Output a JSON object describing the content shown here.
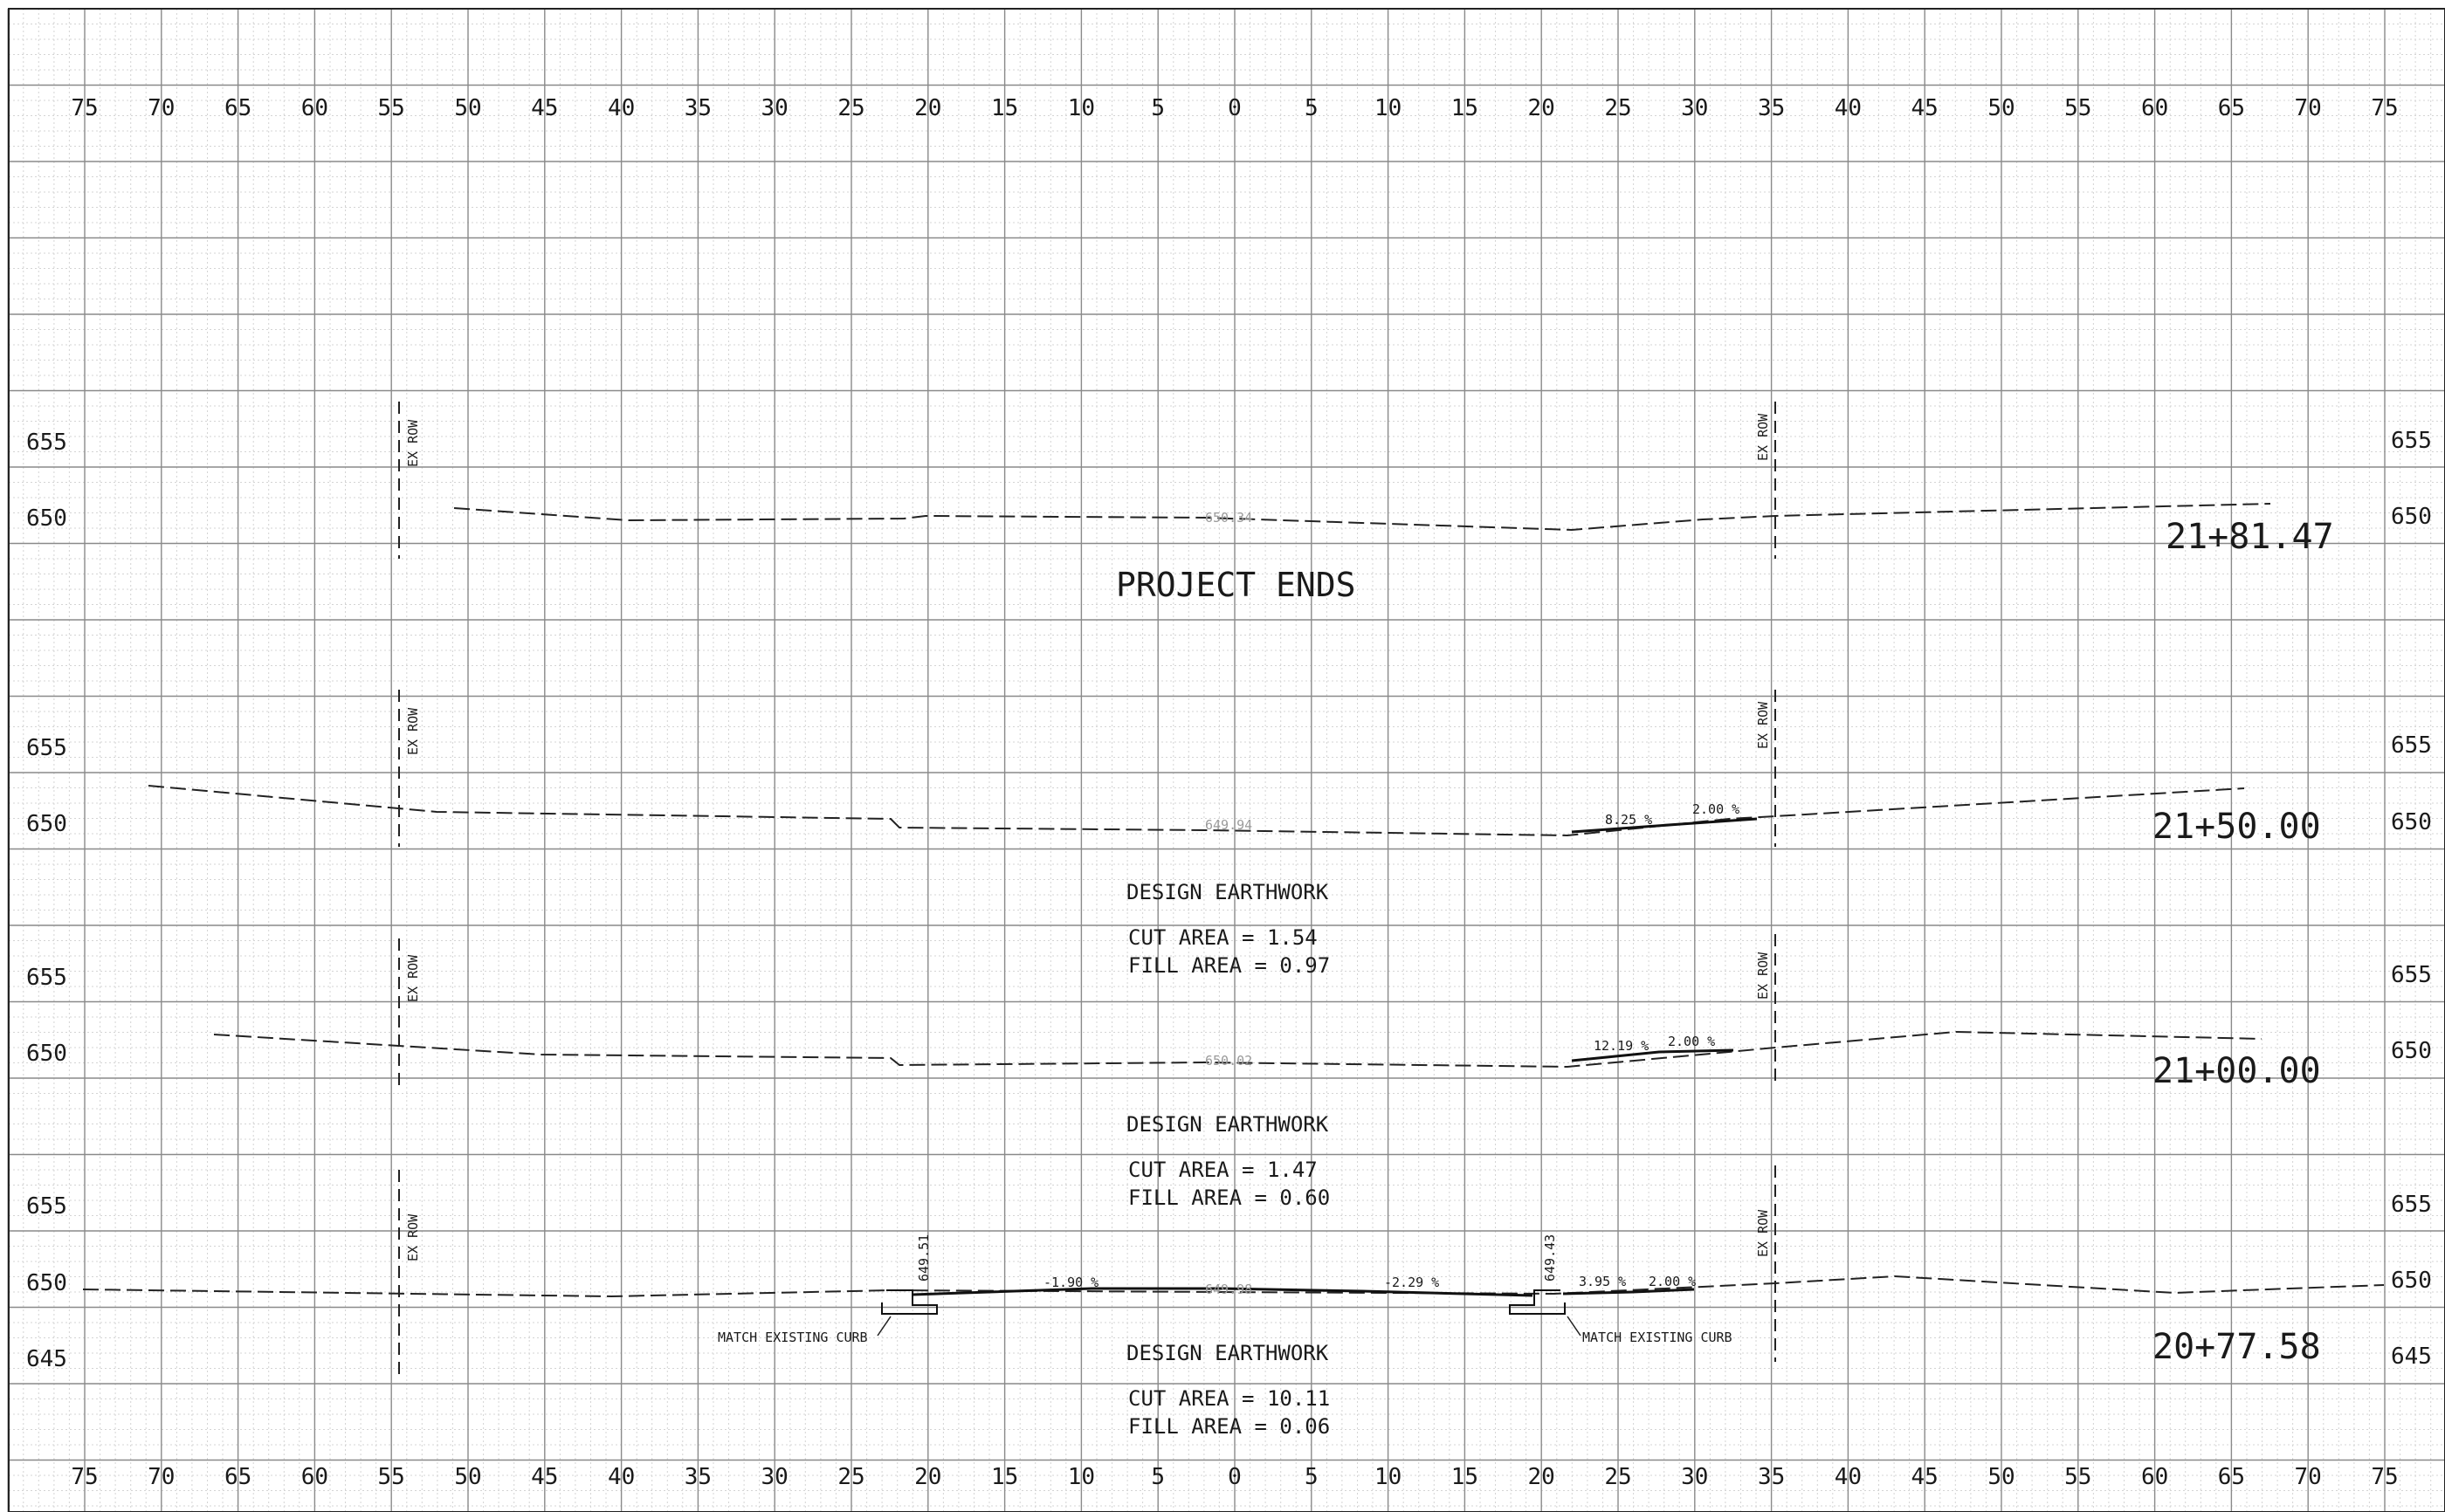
{
  "offset_labels": [
    "75",
    "70",
    "65",
    "60",
    "55",
    "50",
    "45",
    "40",
    "35",
    "30",
    "25",
    "20",
    "15",
    "10",
    "5",
    "0",
    "5",
    "10",
    "15",
    "20",
    "25",
    "30",
    "35",
    "40",
    "45",
    "50",
    "55",
    "60",
    "65",
    "70",
    "75"
  ],
  "sections": [
    {
      "station": "21+81.47",
      "elev_labels": [
        "655",
        "650"
      ],
      "title": "PROJECT ENDS",
      "row_label": "EX ROW",
      "centerline_elev": "650.34"
    },
    {
      "station": "21+50.00",
      "elev_labels": [
        "655",
        "650"
      ],
      "row_label": "EX ROW",
      "centerline_elev": "649.94",
      "slope_left": "8.25 %",
      "slope_right": "2.00 %",
      "earthwork": {
        "heading": "DESIGN EARTHWORK",
        "cut": "CUT AREA = 1.54",
        "fill": "FILL AREA = 0.97"
      }
    },
    {
      "station": "21+00.00",
      "elev_labels": [
        "655",
        "650"
      ],
      "row_label": "EX ROW",
      "centerline_elev": "650.02",
      "slope_left": "12.19 %",
      "slope_right": "2.00 %",
      "earthwork": {
        "heading": "DESIGN EARTHWORK",
        "cut": "CUT AREA = 1.47",
        "fill": "FILL AREA = 0.60"
      }
    },
    {
      "station": "20+77.58",
      "elev_labels": [
        "655",
        "650",
        "645"
      ],
      "row_label": "EX ROW",
      "centerline_elev": "649.98",
      "grade_left": "-1.90 %",
      "grade_right": "-2.29 %",
      "slope_left": "3.95 %",
      "slope_right": "2.00 %",
      "curb_left_elev": "649.51",
      "curb_right_elev": "649.43",
      "curb_note_left": "MATCH EXISTING CURB",
      "curb_note_right": "MATCH EXISTING CURB",
      "earthwork": {
        "heading": "DESIGN EARTHWORK",
        "cut": "CUT AREA = 10.11",
        "fill": "FILL AREA = 0.06"
      }
    }
  ]
}
